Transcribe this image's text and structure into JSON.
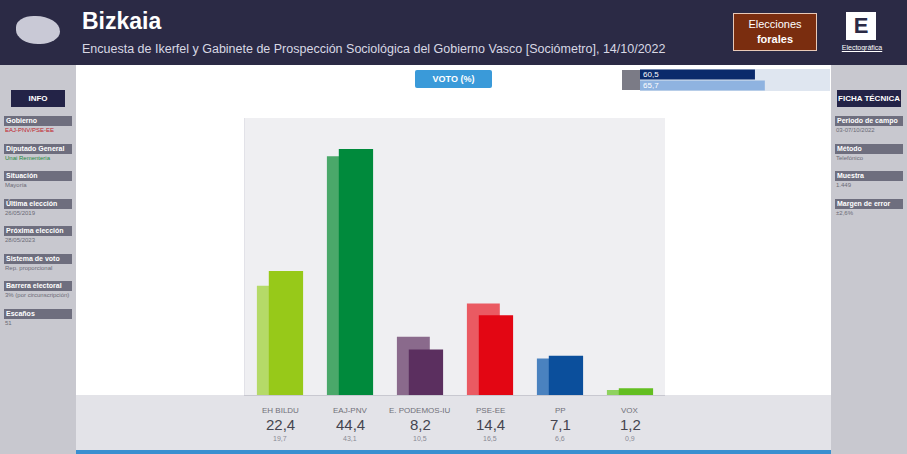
{
  "header": {
    "title": "Bizkaia",
    "subtitle": "Encuesta de Ikerfel y Gabinete de Prospección Sociológica del Gobierno Vasco [Sociómetro], 14/10/2022",
    "badge": [
      "Elecciones",
      "forales"
    ],
    "logo": {
      "letter": "E",
      "name": "Electográfica"
    }
  },
  "info": {
    "title": "INFO",
    "items": [
      [
        "Gobierno",
        "EAJ-PNV/PSE-EE"
      ],
      [
        "Diputado General",
        "Unai Rementeria"
      ],
      [
        "Situación",
        "Mayoría"
      ],
      [
        "Última elección",
        "26/05/2019"
      ],
      [
        "Próxima elección",
        "28/05/2023"
      ],
      [
        "Sistema de voto",
        "Rep. proporcional"
      ],
      [
        "Barrera electoral",
        "3% (por circunscripción)"
      ],
      [
        "Escaños",
        "51"
      ]
    ]
  },
  "ficha": {
    "title": "FICHA TÉCNICA",
    "items": [
      [
        "Periodo de campo",
        "03-07/10/2022"
      ],
      [
        "Método",
        "Telefónico"
      ],
      [
        "Muestra",
        "1.449"
      ],
      [
        "Margen de error",
        "±2,6%"
      ]
    ]
  },
  "chart_data": [
    {
      "type": "bar",
      "title": "VOTO (%)",
      "categories": [
        "EH BILDU",
        "EAJ-PNV",
        "E. PODEMOS-IU",
        "PSE-EE",
        "PP",
        "VOX"
      ],
      "values": [
        22.4,
        44.4,
        8.2,
        14.4,
        7.1,
        1.2
      ],
      "value_labels": [
        "22,4",
        "44,4",
        "8,2",
        "14,4",
        "7,1",
        "1,2"
      ],
      "colors": [
        "#97c919",
        "#008a3c",
        "#5b2f5f",
        "#e30613",
        "#0b4f9c",
        "#63be21"
      ],
      "previous_values": [
        19.7,
        43.1,
        10.5,
        16.5,
        6.6,
        0.9
      ],
      "previous_value_labels": [
        "19,7",
        "43,1",
        "10,5",
        "16,5",
        "6,6",
        "0,9"
      ],
      "previous_colors": [
        "#b5da68",
        "#4aa86a",
        "#8a6a8c",
        "#ea5a62",
        "#4a82bf",
        "#8fd25f"
      ],
      "ylim": [
        0,
        50
      ],
      "data_labels": true,
      "tick_labels": false,
      "grid": false
    },
    {
      "type": "bar",
      "orientation": "horizontal",
      "categories": [
        null,
        null
      ],
      "values": [
        60.5,
        65.7
      ],
      "value_labels": [
        "60,5",
        "65,7"
      ],
      "colors": [
        "#0a2a6b",
        "#8fb3e0"
      ],
      "xlim": [
        0,
        100
      ],
      "data_labels": true,
      "tick_labels": false,
      "grid": false
    }
  ]
}
